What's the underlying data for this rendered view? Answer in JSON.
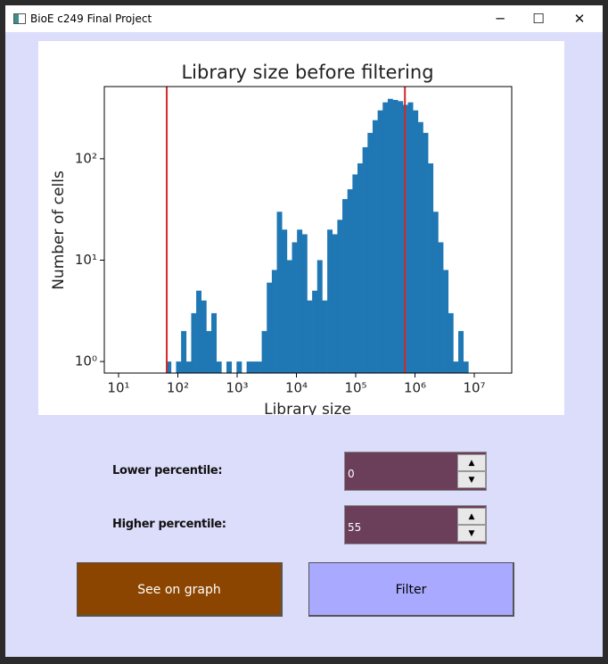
{
  "window": {
    "title": "BioE c249 Final Project"
  },
  "chart_data": {
    "type": "histogram",
    "title": "Library size before filtering",
    "x_label": "Library size",
    "y_label": "Number of cells",
    "x_scale": "log",
    "y_scale": "log",
    "color": "#1f77b4",
    "bins": [
      63.1,
      76.7,
      93.3,
      113.5,
      138,
      168,
      204,
      248,
      302,
      367,
      447,
      543,
      661,
      804,
      977,
      1189,
      1445,
      1758,
      2138,
      2600,
      3162,
      3846,
      4677,
      5689,
      6918,
      8414,
      10233,
      12445,
      15136,
      18408,
      22387,
      27227,
      33113,
      40272,
      48978,
      59566,
      72444,
      88105,
      107152,
      130317,
      158489,
      192752,
      234423,
      285102,
      346737,
      421697,
      512861,
      623735,
      758578,
      922571,
      1122018,
      1364583,
      1659587,
      2018366,
      2454709,
      2985383,
      3630781,
      4415704,
      5370318,
      6531306,
      7943282
    ],
    "counts": [
      1,
      0,
      1,
      2,
      1,
      3,
      5,
      4,
      2,
      3,
      1,
      0,
      1,
      0,
      1,
      0,
      1,
      1,
      1,
      2,
      6,
      8,
      30,
      20,
      10,
      15,
      20,
      18,
      4,
      5,
      10,
      4,
      20,
      18,
      25,
      40,
      50,
      70,
      90,
      130,
      180,
      240,
      300,
      360,
      390,
      380,
      370,
      340,
      360,
      300,
      230,
      180,
      90,
      30,
      15,
      8,
      3,
      1,
      2,
      1
    ],
    "vlines": [
      65,
      676000
    ],
    "vline_color": "#d62728",
    "xlim": [
      5.75,
      42800000
    ],
    "ylim": [
      0.77,
      515
    ],
    "xticks": [
      {
        "value": 10,
        "label": "10¹"
      },
      {
        "value": 100,
        "label": "10²"
      },
      {
        "value": 1000,
        "label": "10³"
      },
      {
        "value": 10000,
        "label": "10⁴"
      },
      {
        "value": 100000,
        "label": "10⁵"
      },
      {
        "value": 1000000,
        "label": "10⁶"
      },
      {
        "value": 10000000,
        "label": "10⁷"
      }
    ],
    "yticks": [
      {
        "value": 1,
        "label": "10⁰"
      },
      {
        "value": 10,
        "label": "10¹"
      },
      {
        "value": 100,
        "label": "10²"
      }
    ]
  },
  "controls": [
    {
      "label": "Lower percentile:",
      "value": 0
    },
    {
      "label": "Higher percentile:",
      "value": 55
    }
  ],
  "buttons": [
    "See on graph",
    "Filter"
  ]
}
